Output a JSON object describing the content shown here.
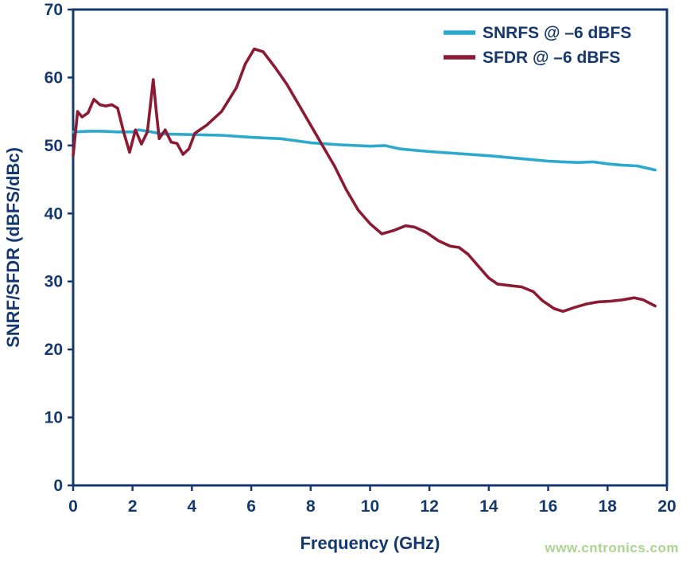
{
  "page": {
    "watermark": "www.cntronics.com"
  },
  "colors": {
    "axis": "#15396E",
    "snrfs_line": "#2BA9CE",
    "sfdr_line": "#8C1A33",
    "watermark": "#ABD58E",
    "background": "#FFFFFF"
  },
  "chart_data": {
    "type": "line",
    "title": "",
    "xlabel": "Frequency (GHz)",
    "ylabel": "SNRF/SFDR (dBFS/dBc)",
    "xlim": [
      0,
      20
    ],
    "ylim": [
      0,
      70
    ],
    "xticks": [
      0,
      2,
      4,
      6,
      8,
      10,
      12,
      14,
      16,
      18,
      20
    ],
    "yticks": [
      0,
      10,
      20,
      30,
      40,
      50,
      60,
      70
    ],
    "grid": false,
    "legend_position": "top-right",
    "series": [
      {
        "name": "SNRFS @ –6 dBFS",
        "color": "#2BA9CE",
        "x": [
          0,
          0.5,
          1,
          1.5,
          2,
          2.2,
          2.5,
          3,
          4,
          5,
          6,
          7,
          8,
          9,
          10,
          10.5,
          11,
          12,
          13,
          14,
          15,
          16,
          16.5,
          17,
          17.5,
          18,
          18.5,
          19,
          19.6
        ],
        "y": [
          52.0,
          52.1,
          52.1,
          52.0,
          52.0,
          52.3,
          52.1,
          51.7,
          51.6,
          51.5,
          51.2,
          51.0,
          50.4,
          50.1,
          49.9,
          50.0,
          49.5,
          49.1,
          48.8,
          48.5,
          48.1,
          47.7,
          47.6,
          47.5,
          47.6,
          47.3,
          47.1,
          47.0,
          46.4
        ]
      },
      {
        "name": "SFDR @ –6 dBFS",
        "color": "#8C1A33",
        "x": [
          0,
          0.15,
          0.3,
          0.5,
          0.7,
          0.9,
          1.1,
          1.3,
          1.5,
          1.7,
          1.9,
          2.1,
          2.3,
          2.5,
          2.7,
          2.8,
          2.9,
          3.1,
          3.3,
          3.5,
          3.7,
          3.9,
          4.1,
          4.5,
          5.0,
          5.5,
          5.8,
          6.1,
          6.4,
          6.8,
          7.2,
          7.6,
          8.0,
          8.4,
          8.8,
          9.2,
          9.6,
          10.0,
          10.4,
          10.8,
          11.2,
          11.5,
          11.9,
          12.3,
          12.7,
          13.0,
          13.3,
          13.6,
          14.0,
          14.3,
          14.7,
          15.1,
          15.5,
          15.8,
          16.2,
          16.5,
          16.9,
          17.3,
          17.7,
          18.1,
          18.5,
          18.9,
          19.2,
          19.6
        ],
        "y": [
          48.5,
          55.0,
          54.2,
          54.8,
          56.8,
          56.0,
          55.8,
          56.0,
          55.5,
          52.0,
          49.0,
          52.3,
          50.2,
          52.0,
          59.7,
          55.0,
          51.0,
          52.3,
          50.5,
          50.3,
          48.7,
          49.5,
          51.8,
          53.0,
          55.0,
          58.5,
          62.0,
          64.2,
          63.8,
          61.5,
          59.0,
          56.0,
          53.0,
          50.0,
          47.0,
          43.5,
          40.5,
          38.5,
          37.0,
          37.5,
          38.2,
          38.0,
          37.2,
          36.0,
          35.2,
          35.0,
          34.0,
          32.5,
          30.5,
          29.6,
          29.4,
          29.2,
          28.5,
          27.2,
          26.0,
          25.6,
          26.2,
          26.7,
          27.0,
          27.1,
          27.3,
          27.6,
          27.3,
          26.4
        ]
      }
    ]
  }
}
